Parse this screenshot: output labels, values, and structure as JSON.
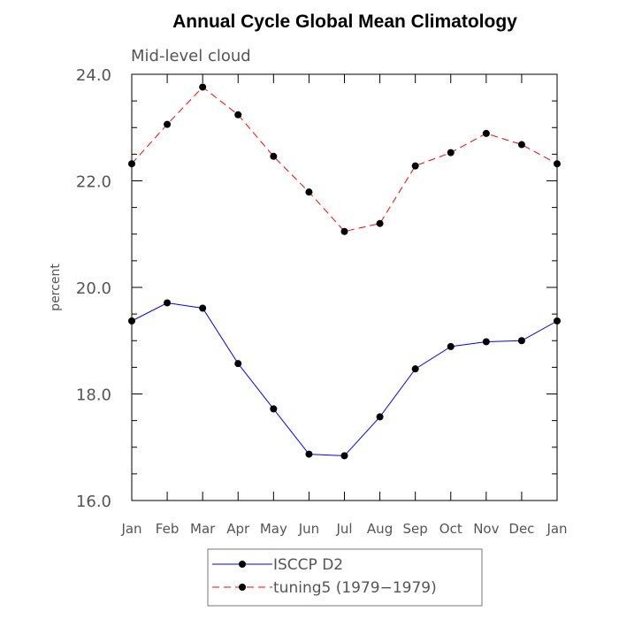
{
  "chart_data": {
    "type": "line",
    "title": "Annual Cycle Global Mean Climatology",
    "subtitle": "Mid-level cloud",
    "ylabel": "percent",
    "xlabel": "",
    "ylim": [
      16.0,
      24.0
    ],
    "yticks": [
      "16.0",
      "18.0",
      "20.0",
      "22.0",
      "24.0"
    ],
    "categories": [
      "Jan",
      "Feb",
      "Mar",
      "Apr",
      "May",
      "Jun",
      "Jul",
      "Aug",
      "Sep",
      "Oct",
      "Nov",
      "Dec",
      "Jan"
    ],
    "grid": false,
    "legend_position": "bottom",
    "series": [
      {
        "name": "ISCCP D2",
        "color": "#0000ff",
        "dash": "solid",
        "values": [
          19.37,
          19.71,
          19.61,
          18.57,
          17.72,
          16.87,
          16.84,
          17.57,
          18.47,
          18.89,
          18.98,
          19.0,
          19.37
        ]
      },
      {
        "name": "tuning5 (1979−1979)",
        "color": "#ff0000",
        "dash": "dashed",
        "values": [
          22.32,
          23.06,
          23.76,
          23.24,
          22.46,
          21.79,
          21.05,
          21.2,
          22.28,
          22.53,
          22.89,
          22.68,
          22.32
        ]
      }
    ]
  }
}
